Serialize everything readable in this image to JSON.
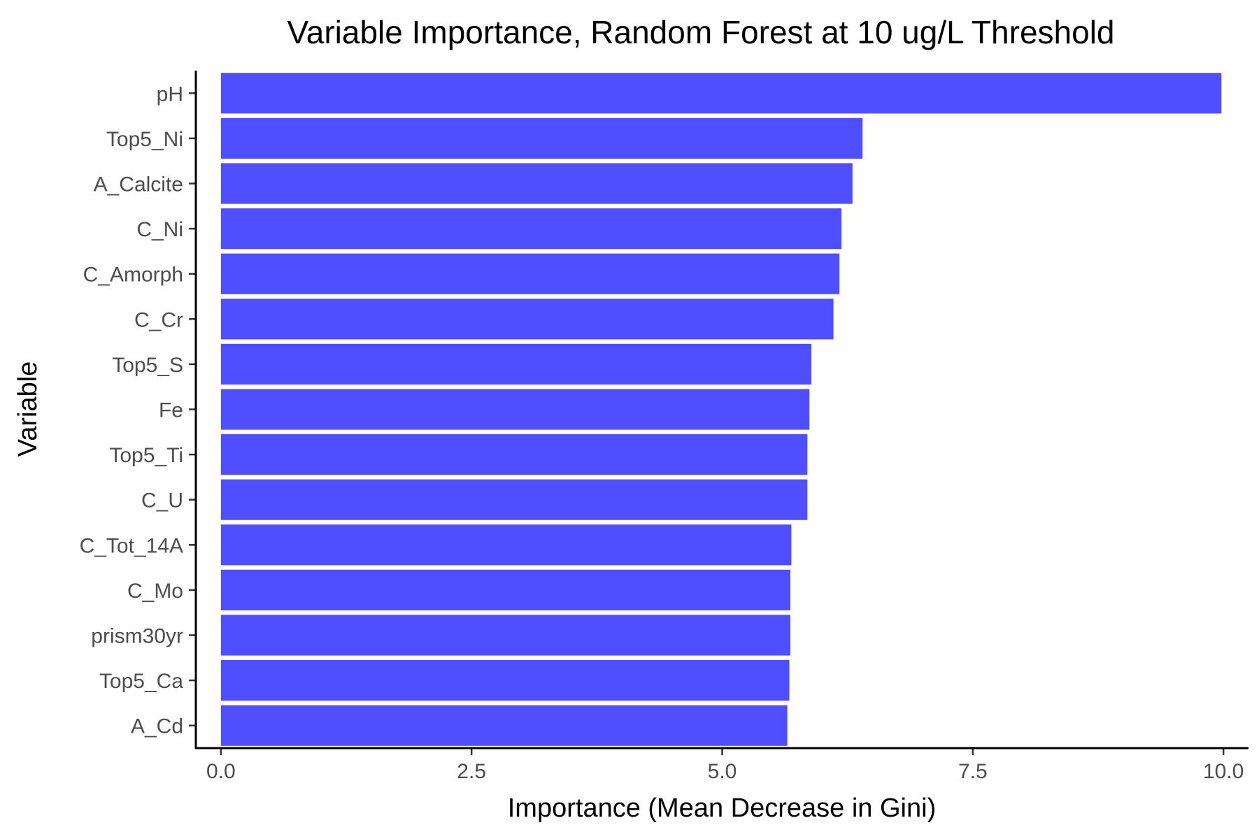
{
  "chart_data": {
    "type": "bar",
    "orientation": "horizontal",
    "title": "Variable Importance, Random Forest at 10 ug/L Threshold",
    "xlabel": "Importance (Mean Decrease in Gini)",
    "ylabel": "Variable",
    "categories": [
      "pH",
      "Top5_Ni",
      "A_Calcite",
      "C_Ni",
      "C_Amorph",
      "C_Cr",
      "Top5_S",
      "Fe",
      "Top5_Ti",
      "C_U",
      "C_Tot_14A",
      "C_Mo",
      "prism30yr",
      "Top5_Ca",
      "A_Cd"
    ],
    "values": [
      9.98,
      6.4,
      6.3,
      6.19,
      6.17,
      6.11,
      5.89,
      5.87,
      5.85,
      5.85,
      5.69,
      5.68,
      5.68,
      5.67,
      5.65
    ],
    "xlim": [
      -0.25,
      10.25
    ],
    "xticks": [
      0.0,
      2.5,
      5.0,
      7.5,
      10.0
    ],
    "xtick_labels": [
      "0.0",
      "2.5",
      "5.0",
      "7.5",
      "10.0"
    ],
    "bar_color": "#4f4fff",
    "grid": false,
    "legend": "none"
  }
}
